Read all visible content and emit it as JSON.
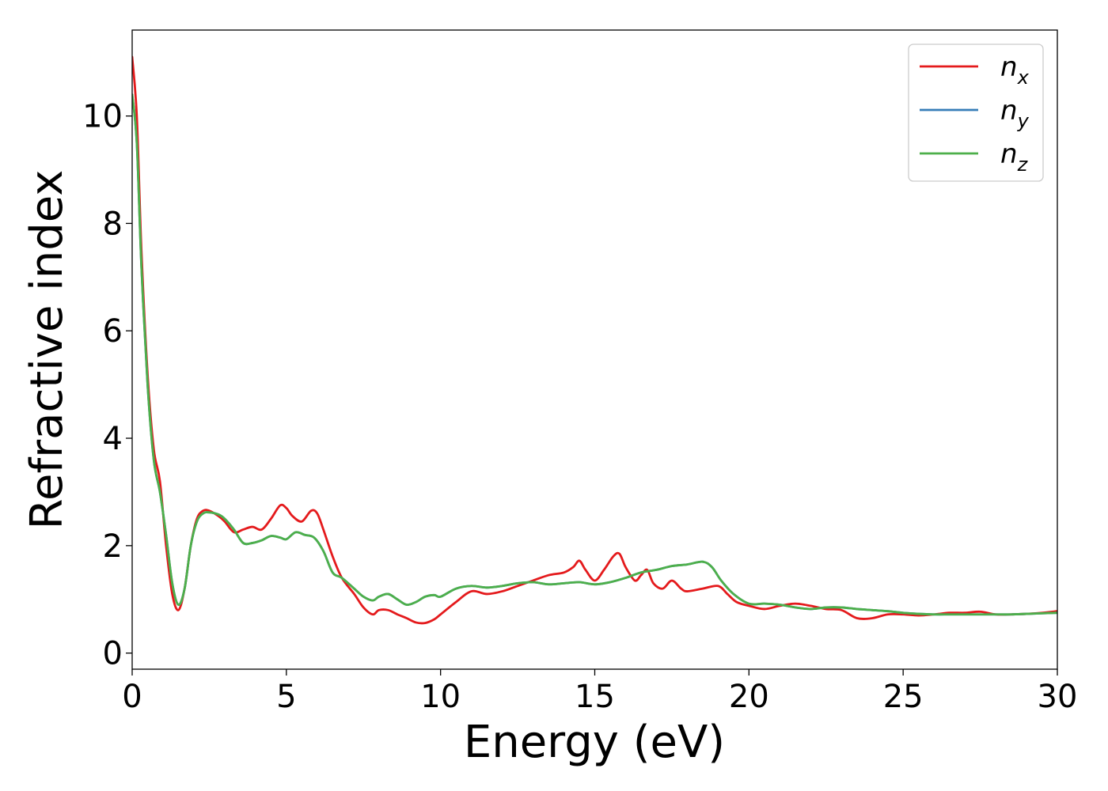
{
  "chart_data": {
    "type": "line",
    "title": "",
    "xlabel": "Energy (eV)",
    "ylabel": "Refractive index",
    "xlim": [
      0,
      30
    ],
    "ylim": [
      -0.3,
      11.6
    ],
    "xticks": [
      0,
      5,
      10,
      15,
      20,
      25,
      30
    ],
    "yticks": [
      0,
      2,
      4,
      6,
      8,
      10
    ],
    "grid": false,
    "legend_position": "top-right",
    "series": [
      {
        "name": "n_x",
        "label_base": "n",
        "label_sub": "x",
        "color": "#e41a1c",
        "x": [
          0,
          0.15,
          0.3,
          0.5,
          0.7,
          0.9,
          1.1,
          1.3,
          1.5,
          1.7,
          1.9,
          2.1,
          2.3,
          2.5,
          2.8,
          3.0,
          3.3,
          3.6,
          3.9,
          4.2,
          4.5,
          4.8,
          5.0,
          5.2,
          5.5,
          5.8,
          6.0,
          6.2,
          6.5,
          6.8,
          7.2,
          7.5,
          7.8,
          8.0,
          8.3,
          8.6,
          8.9,
          9.2,
          9.5,
          9.8,
          10.0,
          10.5,
          11.0,
          11.5,
          12.0,
          12.5,
          13.0,
          13.5,
          14.0,
          14.3,
          14.5,
          14.7,
          15.0,
          15.3,
          15.6,
          15.8,
          16.0,
          16.3,
          16.5,
          16.7,
          16.9,
          17.2,
          17.5,
          17.8,
          18.0,
          18.5,
          19.0,
          19.3,
          19.6,
          20.0,
          20.5,
          21.0,
          21.5,
          22.0,
          22.5,
          23.0,
          23.5,
          24.0,
          24.5,
          25.0,
          25.5,
          26.0,
          26.5,
          27.0,
          27.5,
          28.0,
          28.5,
          29.0,
          29.5,
          30.0
        ],
        "y": [
          11.1,
          10.0,
          7.5,
          5.2,
          3.8,
          3.2,
          2.0,
          1.1,
          0.8,
          1.2,
          2.0,
          2.5,
          2.65,
          2.65,
          2.55,
          2.45,
          2.25,
          2.3,
          2.35,
          2.3,
          2.5,
          2.75,
          2.7,
          2.55,
          2.45,
          2.65,
          2.6,
          2.3,
          1.8,
          1.4,
          1.1,
          0.85,
          0.72,
          0.8,
          0.8,
          0.72,
          0.65,
          0.57,
          0.56,
          0.63,
          0.72,
          0.95,
          1.15,
          1.1,
          1.15,
          1.25,
          1.35,
          1.45,
          1.5,
          1.6,
          1.72,
          1.55,
          1.35,
          1.55,
          1.8,
          1.85,
          1.6,
          1.35,
          1.45,
          1.55,
          1.3,
          1.2,
          1.35,
          1.2,
          1.15,
          1.2,
          1.25,
          1.1,
          0.95,
          0.88,
          0.82,
          0.88,
          0.92,
          0.88,
          0.82,
          0.8,
          0.65,
          0.65,
          0.72,
          0.72,
          0.7,
          0.72,
          0.75,
          0.75,
          0.77,
          0.72,
          0.72,
          0.73,
          0.75,
          0.78
        ]
      },
      {
        "name": "n_y",
        "label_base": "n",
        "label_sub": "y",
        "color": "#377eb8",
        "x": [
          0,
          0.15,
          0.3,
          0.5,
          0.7,
          0.9,
          1.1,
          1.3,
          1.5,
          1.7,
          1.9,
          2.1,
          2.3,
          2.5,
          2.8,
          3.0,
          3.3,
          3.6,
          3.9,
          4.2,
          4.5,
          4.8,
          5.0,
          5.3,
          5.6,
          5.9,
          6.2,
          6.5,
          6.8,
          7.2,
          7.5,
          7.8,
          8.0,
          8.3,
          8.6,
          8.9,
          9.2,
          9.5,
          9.8,
          10.0,
          10.5,
          11.0,
          11.5,
          12.0,
          12.5,
          13.0,
          13.5,
          14.0,
          14.5,
          15.0,
          15.5,
          16.0,
          16.5,
          17.0,
          17.5,
          18.0,
          18.5,
          18.8,
          19.1,
          19.5,
          20.0,
          20.5,
          21.0,
          21.5,
          22.0,
          22.5,
          23.0,
          23.5,
          24.0,
          24.5,
          25.0,
          25.5,
          26.0,
          26.5,
          27.0,
          27.5,
          28.0,
          28.5,
          29.0,
          29.5,
          30.0
        ],
        "y": [
          10.4,
          9.5,
          7.2,
          5.0,
          3.6,
          3.0,
          2.2,
          1.3,
          0.9,
          1.2,
          2.0,
          2.45,
          2.6,
          2.62,
          2.58,
          2.5,
          2.3,
          2.05,
          2.05,
          2.1,
          2.18,
          2.15,
          2.12,
          2.25,
          2.2,
          2.15,
          1.9,
          1.5,
          1.4,
          1.2,
          1.05,
          0.98,
          1.05,
          1.1,
          1.0,
          0.9,
          0.95,
          1.05,
          1.08,
          1.05,
          1.2,
          1.25,
          1.22,
          1.25,
          1.3,
          1.32,
          1.28,
          1.3,
          1.32,
          1.28,
          1.32,
          1.4,
          1.5,
          1.55,
          1.62,
          1.65,
          1.7,
          1.6,
          1.35,
          1.1,
          0.92,
          0.92,
          0.9,
          0.85,
          0.82,
          0.85,
          0.85,
          0.82,
          0.8,
          0.78,
          0.75,
          0.73,
          0.72,
          0.72,
          0.72,
          0.72,
          0.72,
          0.72,
          0.73,
          0.74,
          0.75
        ]
      },
      {
        "name": "n_z",
        "label_base": "n",
        "label_sub": "z",
        "color": "#4daf4a",
        "x": [
          0,
          0.15,
          0.3,
          0.5,
          0.7,
          0.9,
          1.1,
          1.3,
          1.5,
          1.7,
          1.9,
          2.1,
          2.3,
          2.5,
          2.8,
          3.0,
          3.3,
          3.6,
          3.9,
          4.2,
          4.5,
          4.8,
          5.0,
          5.3,
          5.6,
          5.9,
          6.2,
          6.5,
          6.8,
          7.2,
          7.5,
          7.8,
          8.0,
          8.3,
          8.6,
          8.9,
          9.2,
          9.5,
          9.8,
          10.0,
          10.5,
          11.0,
          11.5,
          12.0,
          12.5,
          13.0,
          13.5,
          14.0,
          14.5,
          15.0,
          15.5,
          16.0,
          16.5,
          17.0,
          17.5,
          18.0,
          18.5,
          18.8,
          19.1,
          19.5,
          20.0,
          20.5,
          21.0,
          21.5,
          22.0,
          22.5,
          23.0,
          23.5,
          24.0,
          24.5,
          25.0,
          25.5,
          26.0,
          26.5,
          27.0,
          27.5,
          28.0,
          28.5,
          29.0,
          29.5,
          30.0
        ],
        "y": [
          10.4,
          9.5,
          7.2,
          5.0,
          3.6,
          3.0,
          2.2,
          1.3,
          0.9,
          1.2,
          2.0,
          2.45,
          2.6,
          2.62,
          2.58,
          2.5,
          2.3,
          2.05,
          2.05,
          2.1,
          2.18,
          2.15,
          2.12,
          2.25,
          2.2,
          2.15,
          1.9,
          1.5,
          1.4,
          1.2,
          1.05,
          0.98,
          1.05,
          1.1,
          1.0,
          0.9,
          0.95,
          1.05,
          1.08,
          1.05,
          1.2,
          1.25,
          1.22,
          1.25,
          1.3,
          1.32,
          1.28,
          1.3,
          1.32,
          1.28,
          1.32,
          1.4,
          1.5,
          1.55,
          1.62,
          1.65,
          1.7,
          1.6,
          1.35,
          1.1,
          0.92,
          0.92,
          0.9,
          0.85,
          0.82,
          0.85,
          0.85,
          0.82,
          0.8,
          0.78,
          0.75,
          0.73,
          0.72,
          0.72,
          0.72,
          0.72,
          0.72,
          0.72,
          0.73,
          0.74,
          0.75
        ]
      }
    ]
  }
}
